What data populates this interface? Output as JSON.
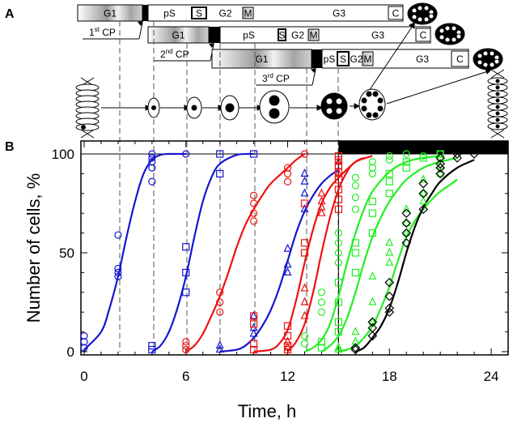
{
  "panels": {
    "a_label": "A",
    "b_label": "B"
  },
  "diagram": {
    "rows": [
      {
        "phases": [
          "G1",
          "pS",
          "S",
          "G2",
          "M",
          "G3",
          "C"
        ],
        "checkpoint": {
          "ordinal": "1",
          "suffix": "st",
          "label": "CP"
        }
      },
      {
        "phases": [
          "G1",
          "pS",
          "S",
          "G2",
          "M",
          "G3",
          "C"
        ],
        "checkpoint": {
          "ordinal": "2",
          "suffix": "nd",
          "label": "CP"
        }
      },
      {
        "phases": [
          "G1",
          "pS",
          "S",
          "G2",
          "M",
          "G3",
          "C"
        ],
        "checkpoint": {
          "ordinal": "3",
          "suffix": "rd",
          "label": "CP"
        }
      }
    ]
  },
  "chart_data": {
    "type": "scatter",
    "xlabel": "Time, h",
    "ylabel": "Number of cells, %",
    "xlim": [
      0,
      25
    ],
    "ylim": [
      0,
      100
    ],
    "xticks": [
      0,
      6,
      12,
      18,
      24
    ],
    "yticks": [
      0,
      50,
      100
    ],
    "colors": {
      "blue": "#1515d0",
      "red": "#ee1111",
      "green": "#22ee22",
      "black": "#000000"
    },
    "series": [
      {
        "color": "blue",
        "marker": "circle",
        "points": [
          [
            0,
            2
          ],
          [
            0,
            5
          ],
          [
            0,
            8
          ],
          [
            2,
            38
          ],
          [
            2,
            40
          ],
          [
            2,
            42
          ],
          [
            2,
            59
          ],
          [
            4,
            86
          ],
          [
            4,
            93
          ],
          [
            4,
            96
          ],
          [
            4,
            98
          ],
          [
            4,
            100
          ],
          [
            6,
            100
          ]
        ],
        "curve": [
          [
            0,
            1
          ],
          [
            1,
            10
          ],
          [
            1.5,
            22
          ],
          [
            2,
            38
          ],
          [
            2.5,
            58
          ],
          [
            3,
            76
          ],
          [
            3.5,
            90
          ],
          [
            4,
            97
          ],
          [
            4.5,
            99.5
          ],
          [
            5,
            100
          ],
          [
            6,
            100
          ]
        ]
      },
      {
        "color": "blue",
        "marker": "square",
        "points": [
          [
            4,
            1
          ],
          [
            4,
            3
          ],
          [
            6,
            30
          ],
          [
            6,
            40
          ],
          [
            6,
            53
          ],
          [
            8,
            90
          ],
          [
            8,
            100
          ],
          [
            10,
            100
          ]
        ],
        "curve": [
          [
            4,
            0
          ],
          [
            4.5,
            3
          ],
          [
            5,
            10
          ],
          [
            5.5,
            22
          ],
          [
            6,
            38
          ],
          [
            6.5,
            58
          ],
          [
            7,
            76
          ],
          [
            7.5,
            88
          ],
          [
            8,
            95
          ],
          [
            9,
            99.5
          ],
          [
            10,
            100
          ]
        ]
      },
      {
        "color": "red",
        "marker": "circle",
        "points": [
          [
            6,
            1
          ],
          [
            6,
            3
          ],
          [
            6,
            5
          ],
          [
            8,
            20
          ],
          [
            8,
            25
          ],
          [
            8,
            30
          ],
          [
            10,
            66
          ],
          [
            10,
            70
          ],
          [
            10,
            75
          ],
          [
            10,
            79
          ],
          [
            12,
            86
          ],
          [
            12,
            90
          ],
          [
            12,
            93
          ],
          [
            13,
            100
          ]
        ],
        "curve": [
          [
            6,
            0
          ],
          [
            6.5,
            3
          ],
          [
            7,
            9
          ],
          [
            7.5,
            18
          ],
          [
            8,
            28
          ],
          [
            8.5,
            40
          ],
          [
            9,
            53
          ],
          [
            9.5,
            64
          ],
          [
            10,
            72
          ],
          [
            10.5,
            79
          ],
          [
            11,
            85
          ],
          [
            12,
            93
          ],
          [
            12.5,
            97
          ],
          [
            13,
            100
          ]
        ]
      },
      {
        "color": "blue",
        "marker": "triangle",
        "points": [
          [
            8,
            1
          ],
          [
            8,
            3
          ],
          [
            10,
            9
          ],
          [
            10,
            12
          ],
          [
            10,
            18
          ],
          [
            12,
            40
          ],
          [
            12,
            44
          ],
          [
            12,
            52
          ],
          [
            13,
            72
          ],
          [
            13,
            80
          ],
          [
            13,
            86
          ],
          [
            13,
            90
          ],
          [
            15,
            96
          ]
        ],
        "curve": [
          [
            8,
            0
          ],
          [
            9,
            1
          ],
          [
            9.5,
            3
          ],
          [
            10,
            7
          ],
          [
            10.5,
            13
          ],
          [
            11,
            21
          ],
          [
            11.5,
            32
          ],
          [
            12,
            46
          ],
          [
            12.5,
            60
          ],
          [
            13,
            71
          ],
          [
            13.5,
            79
          ],
          [
            14,
            85
          ],
          [
            14.5,
            89
          ],
          [
            15,
            92
          ]
        ]
      },
      {
        "color": "red",
        "marker": "square",
        "points": [
          [
            10,
            1
          ],
          [
            10,
            4
          ],
          [
            10,
            14
          ],
          [
            10,
            18
          ],
          [
            12,
            1
          ],
          [
            12,
            3
          ],
          [
            12,
            8
          ],
          [
            12,
            13
          ],
          [
            13,
            50
          ],
          [
            13,
            55
          ],
          [
            13,
            75
          ],
          [
            15,
            72
          ],
          [
            15,
            77
          ],
          [
            15,
            82
          ],
          [
            15,
            87
          ],
          [
            15,
            91
          ],
          [
            15,
            94
          ],
          [
            15,
            97
          ],
          [
            15,
            99
          ]
        ],
        "curve": [
          [
            10,
            0
          ],
          [
            11,
            1
          ],
          [
            11.5,
            4
          ],
          [
            12,
            11
          ],
          [
            12.5,
            26
          ],
          [
            13,
            45
          ],
          [
            13.5,
            62
          ],
          [
            14,
            75
          ],
          [
            14.5,
            83
          ],
          [
            15,
            88
          ],
          [
            16,
            96
          ],
          [
            16.5,
            98
          ]
        ]
      },
      {
        "color": "red",
        "marker": "triangle",
        "points": [
          [
            12,
            2
          ],
          [
            12,
            5
          ],
          [
            13,
            18
          ],
          [
            13,
            25
          ],
          [
            13,
            32
          ],
          [
            14,
            70
          ],
          [
            14,
            73
          ],
          [
            14,
            76
          ],
          [
            14,
            80
          ],
          [
            15,
            90
          ],
          [
            15,
            96
          ]
        ],
        "curve": [
          [
            12,
            0
          ],
          [
            12.5,
            5
          ],
          [
            13,
            14
          ],
          [
            13.5,
            30
          ],
          [
            14,
            50
          ],
          [
            14.5,
            68
          ],
          [
            15,
            82
          ],
          [
            15.5,
            91
          ],
          [
            16,
            96
          ],
          [
            17,
            99
          ]
        ]
      },
      {
        "color": "green",
        "marker": "circle",
        "points": [
          [
            13,
            4
          ],
          [
            13,
            8
          ],
          [
            14,
            20
          ],
          [
            14,
            25
          ],
          [
            14,
            30
          ],
          [
            15,
            45
          ],
          [
            15,
            50
          ],
          [
            15,
            55
          ],
          [
            15,
            60
          ],
          [
            16,
            72
          ],
          [
            16,
            78
          ],
          [
            16,
            84
          ],
          [
            16,
            88
          ],
          [
            17,
            90
          ],
          [
            17,
            93
          ],
          [
            17,
            96
          ],
          [
            18,
            97
          ],
          [
            18,
            99
          ],
          [
            19,
            100
          ],
          [
            20,
            99
          ],
          [
            21,
            100
          ]
        ],
        "curve": [
          [
            13,
            0
          ],
          [
            13.5,
            2
          ],
          [
            14,
            6
          ],
          [
            14.5,
            14
          ],
          [
            15,
            28
          ],
          [
            15.5,
            45
          ],
          [
            16,
            60
          ],
          [
            16.5,
            72
          ],
          [
            17,
            81
          ],
          [
            18,
            91
          ],
          [
            19,
            96
          ],
          [
            20,
            98
          ],
          [
            21,
            99
          ]
        ]
      },
      {
        "color": "green",
        "marker": "square",
        "points": [
          [
            14,
            2
          ],
          [
            14,
            5
          ],
          [
            15,
            10
          ],
          [
            15,
            15
          ],
          [
            15,
            25
          ],
          [
            15,
            35
          ],
          [
            16,
            40
          ],
          [
            16,
            50
          ],
          [
            16,
            55
          ],
          [
            17,
            60
          ],
          [
            17,
            70
          ],
          [
            17,
            76
          ],
          [
            18,
            80
          ],
          [
            18,
            86
          ],
          [
            18,
            90
          ],
          [
            19,
            93
          ],
          [
            19,
            96
          ],
          [
            20,
            98
          ],
          [
            21,
            100
          ]
        ],
        "curve": [
          [
            14,
            0
          ],
          [
            14.5,
            3
          ],
          [
            15,
            8
          ],
          [
            15.5,
            17
          ],
          [
            16,
            30
          ],
          [
            16.5,
            45
          ],
          [
            17,
            58
          ],
          [
            17.5,
            68
          ],
          [
            18,
            76
          ],
          [
            18.5,
            82
          ],
          [
            19,
            87
          ],
          [
            20,
            93
          ],
          [
            21,
            96
          ],
          [
            22,
            98
          ]
        ]
      },
      {
        "color": "green",
        "marker": "triangle",
        "points": [
          [
            15,
            1
          ],
          [
            15,
            2
          ],
          [
            16,
            5
          ],
          [
            16,
            10
          ],
          [
            17,
            15
          ],
          [
            17,
            25
          ],
          [
            17,
            38
          ],
          [
            18,
            45
          ],
          [
            18,
            50
          ],
          [
            18,
            55
          ],
          [
            19,
            60
          ],
          [
            19,
            65
          ],
          [
            19,
            72
          ],
          [
            20,
            76
          ],
          [
            20,
            80
          ],
          [
            20,
            87
          ],
          [
            21,
            90
          ],
          [
            21,
            94
          ],
          [
            21,
            98
          ]
        ],
        "curve": [
          [
            15,
            0
          ],
          [
            15.5,
            1
          ],
          [
            16,
            3
          ],
          [
            16.5,
            7
          ],
          [
            17,
            13
          ],
          [
            17.5,
            22
          ],
          [
            18,
            33
          ],
          [
            18.5,
            46
          ],
          [
            19,
            58
          ],
          [
            19.5,
            66
          ],
          [
            20,
            72
          ],
          [
            20.5,
            77
          ],
          [
            21,
            81
          ],
          [
            21.5,
            84
          ],
          [
            22,
            87
          ]
        ]
      },
      {
        "color": "black",
        "marker": "diamond",
        "points": [
          [
            16,
            1
          ],
          [
            16,
            2
          ],
          [
            17,
            8
          ],
          [
            17,
            12
          ],
          [
            17,
            15
          ],
          [
            18,
            20
          ],
          [
            18,
            22
          ],
          [
            18,
            28
          ],
          [
            18,
            35
          ],
          [
            19,
            55
          ],
          [
            19,
            60
          ],
          [
            19,
            65
          ],
          [
            19,
            70
          ],
          [
            20,
            72
          ],
          [
            20,
            80
          ],
          [
            20,
            85
          ],
          [
            21,
            90
          ],
          [
            21,
            93
          ],
          [
            21,
            95
          ],
          [
            21,
            98
          ],
          [
            22,
            98
          ],
          [
            22,
            100
          ],
          [
            23,
            100
          ]
        ],
        "curve": [
          [
            16,
            0
          ],
          [
            16.5,
            2
          ],
          [
            17,
            7
          ],
          [
            17.5,
            13
          ],
          [
            18,
            22
          ],
          [
            18.5,
            35
          ],
          [
            19,
            50
          ],
          [
            19.5,
            63
          ],
          [
            20,
            73
          ],
          [
            20.5,
            80
          ],
          [
            21,
            86
          ],
          [
            22,
            93
          ],
          [
            23,
            97
          ]
        ]
      }
    ]
  }
}
